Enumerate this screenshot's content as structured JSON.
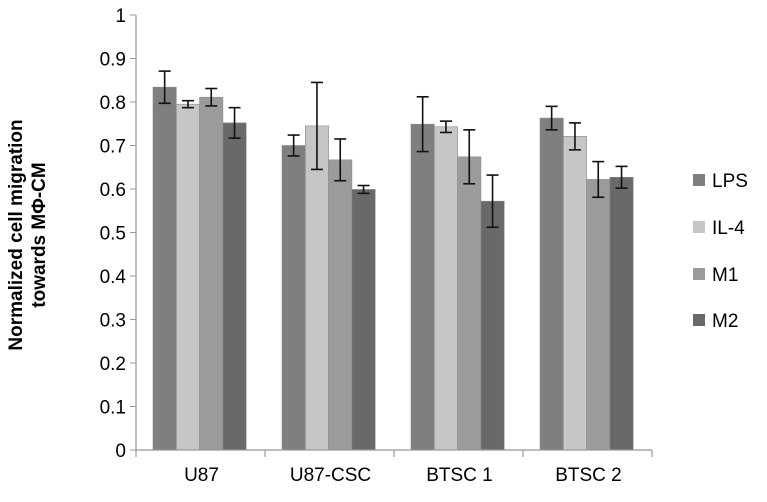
{
  "chart_data": {
    "type": "bar",
    "title": "",
    "xlabel": "",
    "ylabel_lines": [
      "Normalized cell migration",
      "towards MΦ-CM"
    ],
    "ylim": [
      0,
      1
    ],
    "yticks": [
      "0",
      "0.1",
      "0.2",
      "0.3",
      "0.4",
      "0.5",
      "0.6",
      "0.7",
      "0.8",
      "0.9",
      "1"
    ],
    "grid": false,
    "legend_position": "right",
    "categories": [
      "U87",
      "U87-CSC",
      "BTSC 1",
      "BTSC 2"
    ],
    "series": [
      {
        "name": "LPS",
        "color": "#7f7f7f",
        "values": [
          0.834,
          0.7,
          0.749,
          0.763
        ],
        "errors": [
          0.037,
          0.024,
          0.063,
          0.027
        ]
      },
      {
        "name": "IL-4",
        "color": "#c6c6c6",
        "values": [
          0.795,
          0.745,
          0.743,
          0.721
        ],
        "errors": [
          0.008,
          0.1,
          0.013,
          0.031
        ]
      },
      {
        "name": "M1",
        "color": "#9b9b9b",
        "values": [
          0.811,
          0.667,
          0.674,
          0.622
        ],
        "errors": [
          0.02,
          0.048,
          0.062,
          0.041
        ]
      },
      {
        "name": "M2",
        "color": "#696969",
        "values": [
          0.752,
          0.599,
          0.572,
          0.627
        ],
        "errors": [
          0.035,
          0.009,
          0.06,
          0.025
        ]
      }
    ]
  }
}
